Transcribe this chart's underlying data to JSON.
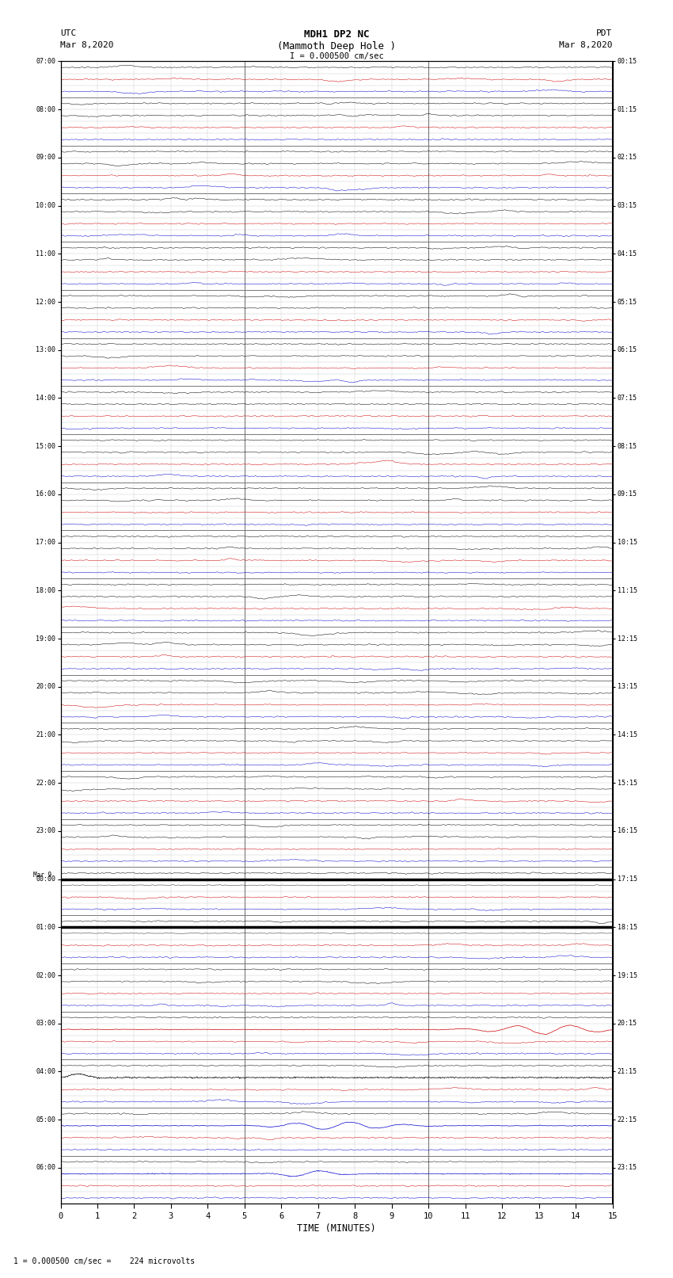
{
  "title_line1": "MDH1 DP2 NC",
  "title_line2": "(Mammoth Deep Hole )",
  "scale_label": "I = 0.000500 cm/sec",
  "left_label_top": "UTC",
  "left_label_date": "Mar 8,2020",
  "right_label_top": "PDT",
  "right_label_date": "Mar 8,2020",
  "bottom_label": "TIME (MINUTES)",
  "bottom_note": "1 = 0.000500 cm/sec =    224 microvolts",
  "utc_rows": [
    "07:00",
    "",
    "",
    "",
    "08:00",
    "",
    "",
    "",
    "09:00",
    "",
    "",
    "",
    "10:00",
    "",
    "",
    "",
    "11:00",
    "",
    "",
    "",
    "12:00",
    "",
    "",
    "",
    "13:00",
    "",
    "",
    "",
    "14:00",
    "",
    "",
    "",
    "15:00",
    "",
    "",
    "",
    "16:00",
    "",
    "",
    "",
    "17:00",
    "",
    "",
    "",
    "18:00",
    "",
    "",
    "",
    "19:00",
    "",
    "",
    "",
    "20:00",
    "",
    "",
    "",
    "21:00",
    "",
    "",
    "",
    "22:00",
    "",
    "",
    "",
    "23:00",
    "",
    "",
    "",
    "00:00",
    "",
    "",
    "",
    "01:00",
    "",
    "",
    "",
    "02:00",
    "",
    "",
    "",
    "03:00",
    "",
    "",
    "",
    "04:00",
    "",
    "",
    "",
    "05:00",
    "",
    "",
    "",
    "06:00",
    "",
    ""
  ],
  "pdt_rows": [
    "00:15",
    "",
    "",
    "",
    "01:15",
    "",
    "",
    "",
    "02:15",
    "",
    "",
    "",
    "03:15",
    "",
    "",
    "",
    "04:15",
    "",
    "",
    "",
    "05:15",
    "",
    "",
    "",
    "06:15",
    "",
    "",
    "",
    "07:15",
    "",
    "",
    "",
    "08:15",
    "",
    "",
    "",
    "09:15",
    "",
    "",
    "",
    "10:15",
    "",
    "",
    "",
    "11:15",
    "",
    "",
    "",
    "12:15",
    "",
    "",
    "",
    "13:15",
    "",
    "",
    "",
    "14:15",
    "",
    "",
    "",
    "15:15",
    "",
    "",
    "",
    "16:15",
    "",
    "",
    "",
    "17:15",
    "",
    "",
    "",
    "18:15",
    "",
    "",
    "",
    "19:15",
    "",
    "",
    "",
    "20:15",
    "",
    "",
    "",
    "21:15",
    "",
    "",
    "",
    "22:15",
    "",
    "",
    "",
    "23:15",
    "",
    ""
  ],
  "n_rows": 95,
  "n_minutes": 15,
  "bg": "#ffffff",
  "color_black": "#000000",
  "color_red": "#cc0000",
  "color_blue": "#0000cc",
  "color_green": "#006600",
  "color_grid_major": "#777777",
  "color_grid_minor": "#bbbbbb",
  "mar9_row": 68
}
